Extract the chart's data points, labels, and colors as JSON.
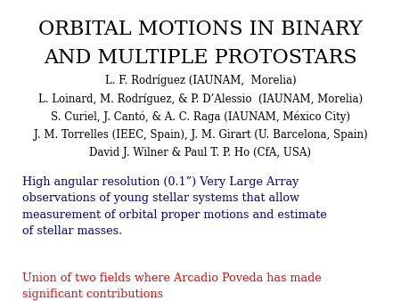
{
  "title_line1": "ORBITAL MOTIONS IN BINARY",
  "title_line2": "AND MULTIPLE PROTOSTARS",
  "authors": [
    "L. F. Rodríguez (IAUNAM,  Morelia)",
    "L. Loinard, M. Rodríguez, & P. D’Alessio  (IAUNAM, Morelia)",
    "S. Curiel, J. Cantó, & A. C. Raga (IAUNAM, México City)",
    "J. M. Torrelles (IEEC, Spain), J. M. Girart (U. Barcelona, Spain)",
    "David J. Wilner & Paul T. P. Ho (CfA, USA)"
  ],
  "blue_text": "High angular resolution (0.1”) Very Large Array\nobservations of young stellar systems that allow\nmeasurement of orbital proper motions and estimate\nof stellar masses.",
  "red_text": "Union of two fields where Arcadio Poveda has made\nsignificant contributions",
  "title_color": "#000000",
  "author_color": "#000000",
  "blue_color": "#00008B",
  "red_color": "#FF0000",
  "background_color": "#FFFFFF",
  "title_fontsize": 16,
  "author_fontsize": 8.5,
  "body_fontsize": 9.2
}
